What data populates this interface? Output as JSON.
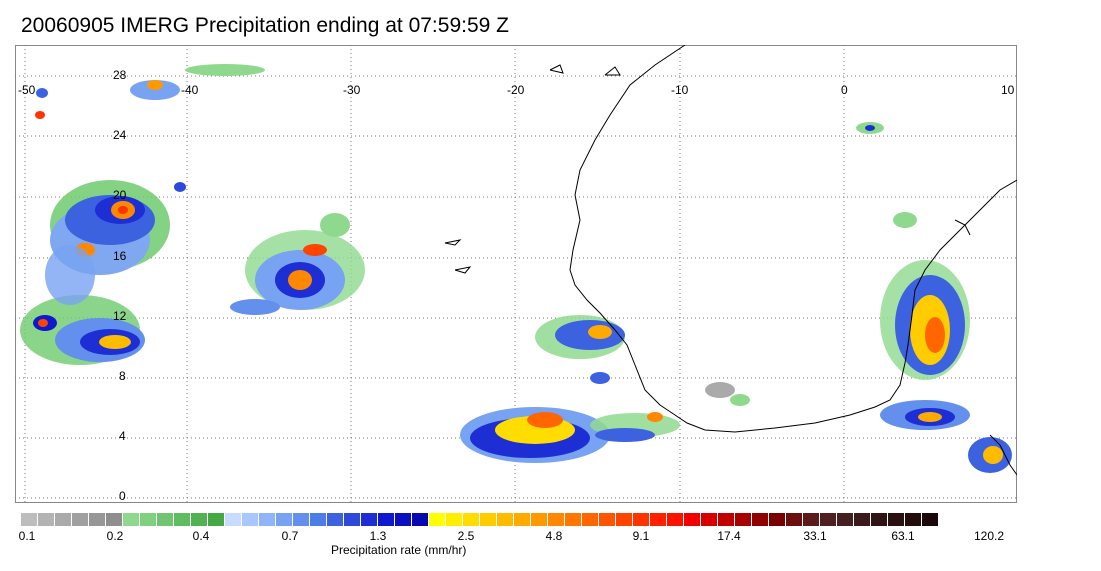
{
  "title": "20060905 IMERG Precipitation ending at 07:59:59 Z",
  "map": {
    "lon_labels": [
      "-50",
      "-40",
      "-30",
      "-20",
      "-10",
      "0",
      "10"
    ],
    "lat_labels": [
      "28",
      "24",
      "20",
      "16",
      "12",
      "8",
      "4",
      "0"
    ],
    "lon_range": [
      -50,
      10
    ],
    "lat_range": [
      -0.5,
      29
    ],
    "grid": true
  },
  "colorbar": {
    "label": "Precipitation rate (mm/hr)",
    "tick_labels": [
      "0.1",
      "0.2",
      "0.4",
      "0.7",
      "1.3",
      "2.5",
      "4.8",
      "9.1",
      "17.4",
      "33.1",
      "63.1",
      "120.2"
    ],
    "colors": [
      "#bdbdbd",
      "#b3b3b3",
      "#aaaaaa",
      "#a0a0a0",
      "#979797",
      "#8e8e8e",
      "#8fd98f",
      "#7fd07f",
      "#70c670",
      "#60bc60",
      "#52b252",
      "#45a845",
      "#c9dbff",
      "#a9c6ff",
      "#8fb4f8",
      "#78a2f2",
      "#6290ec",
      "#4c7ee5",
      "#3c62e0",
      "#2d49da",
      "#1d2fd4",
      "#0e18cc",
      "#0a10c0",
      "#0808b0",
      "#ffff00",
      "#ffee00",
      "#ffdd00",
      "#ffcc00",
      "#ffbb00",
      "#ffaa00",
      "#ff9900",
      "#ff8800",
      "#ff7700",
      "#ff6600",
      "#ff5500",
      "#ff4400",
      "#ff3300",
      "#ff2200",
      "#ff1100",
      "#f00000",
      "#d80000",
      "#c00000",
      "#a80000",
      "#900000",
      "#780000",
      "#6a0e0e",
      "#5c1a1a",
      "#4e2020",
      "#442020",
      "#3a1a1a",
      "#301414",
      "#2a1010",
      "#220c0c",
      "#1c0808"
    ]
  }
}
